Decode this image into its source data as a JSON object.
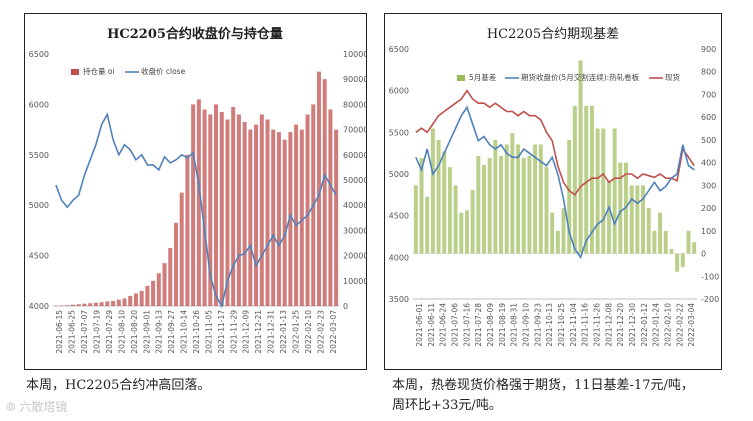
{
  "chart_data": [
    {
      "type": "bar+line",
      "title": "HC2205合约收盘价与持仓量",
      "legend": [
        "持仓量 oi",
        "收盘价 close"
      ],
      "colors": {
        "oi": "#c0504d",
        "close": "#4f81bd"
      },
      "y_left": {
        "min": 4000,
        "max": 6500,
        "ticks": [
          4000,
          4500,
          5000,
          5500,
          6000,
          6500
        ]
      },
      "y_right": {
        "min": 0,
        "max": 1000000,
        "ticks": [
          "0",
          "100000",
          "200000",
          "300000",
          "400000",
          "500000",
          "600000",
          "700000",
          "800000",
          "900000",
          "1000000"
        ]
      },
      "x_ticks": [
        "2021-06-15",
        "2021-06-25",
        "2021-07-07",
        "2021-07-19",
        "2021-07-29",
        "2021-08-10",
        "2021-08-20",
        "2021-09-01",
        "2021-09-13",
        "2021-09-27",
        "2021-10-14",
        "2021-10-26",
        "2021-11-05",
        "2021-11-17",
        "2021-11-29",
        "2021-12-09",
        "2021-12-21",
        "2021-12-31",
        "2022-01-13",
        "2022-01-25",
        "2022-02-10",
        "2022-02-23",
        "2022-03-07"
      ],
      "close": [
        5200,
        5050,
        4980,
        5050,
        5100,
        5300,
        5450,
        5600,
        5800,
        5900,
        5650,
        5500,
        5600,
        5550,
        5450,
        5500,
        5400,
        5400,
        5350,
        5480,
        5420,
        5450,
        5500,
        5470,
        5520,
        5200,
        4750,
        4300,
        4100,
        4000,
        4250,
        4400,
        4500,
        4520,
        4600,
        4400,
        4500,
        4600,
        4700,
        4600,
        4700,
        4900,
        4800,
        4850,
        4900,
        5000,
        5100,
        5300,
        5200,
        5100
      ],
      "oi": [
        1000,
        2000,
        3000,
        5000,
        7000,
        9000,
        11000,
        13000,
        15000,
        18000,
        20000,
        25000,
        30000,
        40000,
        50000,
        60000,
        80000,
        100000,
        130000,
        170000,
        230000,
        330000,
        450000,
        600000,
        800000,
        820000,
        780000,
        760000,
        800000,
        770000,
        740000,
        790000,
        760000,
        730000,
        700000,
        720000,
        760000,
        740000,
        700000,
        690000,
        660000,
        690000,
        720000,
        700000,
        760000,
        800000,
        930000,
        900000,
        780000,
        700000
      ]
    },
    {
      "type": "bar+line",
      "title": "HC2205合约期现基差",
      "legend": [
        "5月基差",
        "期货收盘价(5月交割连续):热轧卷板",
        "现货"
      ],
      "colors": {
        "basis": "#9bbb59",
        "futures": "#4f81bd",
        "spot": "#c0504d"
      },
      "y_left": {
        "min": 3500,
        "max": 6500,
        "ticks": [
          3500,
          4000,
          4500,
          5000,
          5500,
          6000,
          6500
        ]
      },
      "y_right": {
        "min": -200,
        "max": 900,
        "ticks": [
          -200,
          -100,
          0,
          100,
          200,
          300,
          400,
          500,
          600,
          700,
          800,
          900
        ]
      },
      "x_ticks": [
        "2021-06-01",
        "2021-06-11",
        "2021-06-24",
        "2021-07-06",
        "2021-07-16",
        "2021-07-28",
        "2021-08-09",
        "2021-08-19",
        "2021-08-31",
        "2021-09-10",
        "2021-09-23",
        "2021-10-13",
        "2021-10-25",
        "2021-11-04",
        "2021-11-16",
        "2021-11-26",
        "2021-12-08",
        "2021-12-20",
        "2021-12-30",
        "2022-01-12",
        "2022-01-24",
        "2022-02-10",
        "2022-02-22",
        "2022-03-04"
      ],
      "futures": [
        5200,
        5050,
        5300,
        5000,
        5100,
        5250,
        5400,
        5550,
        5700,
        5800,
        5600,
        5400,
        5450,
        5350,
        5300,
        5350,
        5250,
        5200,
        5200,
        5300,
        5250,
        5200,
        5150,
        5100,
        5200,
        5000,
        4700,
        4300,
        4100,
        4000,
        4200,
        4300,
        4400,
        4450,
        4600,
        4400,
        4550,
        4600,
        4700,
        4650,
        4700,
        4800,
        4900,
        4800,
        4850,
        4950,
        5000,
        5350,
        5100,
        5050
      ],
      "spot": [
        5500,
        5550,
        5500,
        5600,
        5700,
        5750,
        5800,
        5850,
        5900,
        6000,
        5900,
        5850,
        5850,
        5800,
        5850,
        5800,
        5750,
        5750,
        5700,
        5750,
        5700,
        5700,
        5650,
        5500,
        5400,
        5100,
        4900,
        4800,
        4750,
        4850,
        4900,
        4950,
        4950,
        5000,
        4900,
        4950,
        4950,
        5000,
        5000,
        4950,
        5000,
        4980,
        4960,
        5000,
        4950,
        4950,
        4920,
        5300,
        5200,
        5100
      ],
      "basis": [
        300,
        420,
        250,
        550,
        500,
        450,
        380,
        300,
        180,
        190,
        280,
        430,
        390,
        420,
        500,
        430,
        480,
        530,
        480,
        420,
        430,
        480,
        480,
        380,
        180,
        100,
        200,
        500,
        650,
        850,
        650,
        650,
        550,
        550,
        320,
        550,
        400,
        400,
        300,
        300,
        300,
        200,
        100,
        180,
        100,
        20,
        -80,
        -60,
        100,
        50
      ]
    }
  ],
  "captions": {
    "left": "本周，HC2205合约冲高回落。",
    "right_line1": "本周，热卷现货价格强于期货，11日基差-17元/吨，",
    "right_line2": "周环比+33元/吨。"
  },
  "watermark": "六散塔镜"
}
